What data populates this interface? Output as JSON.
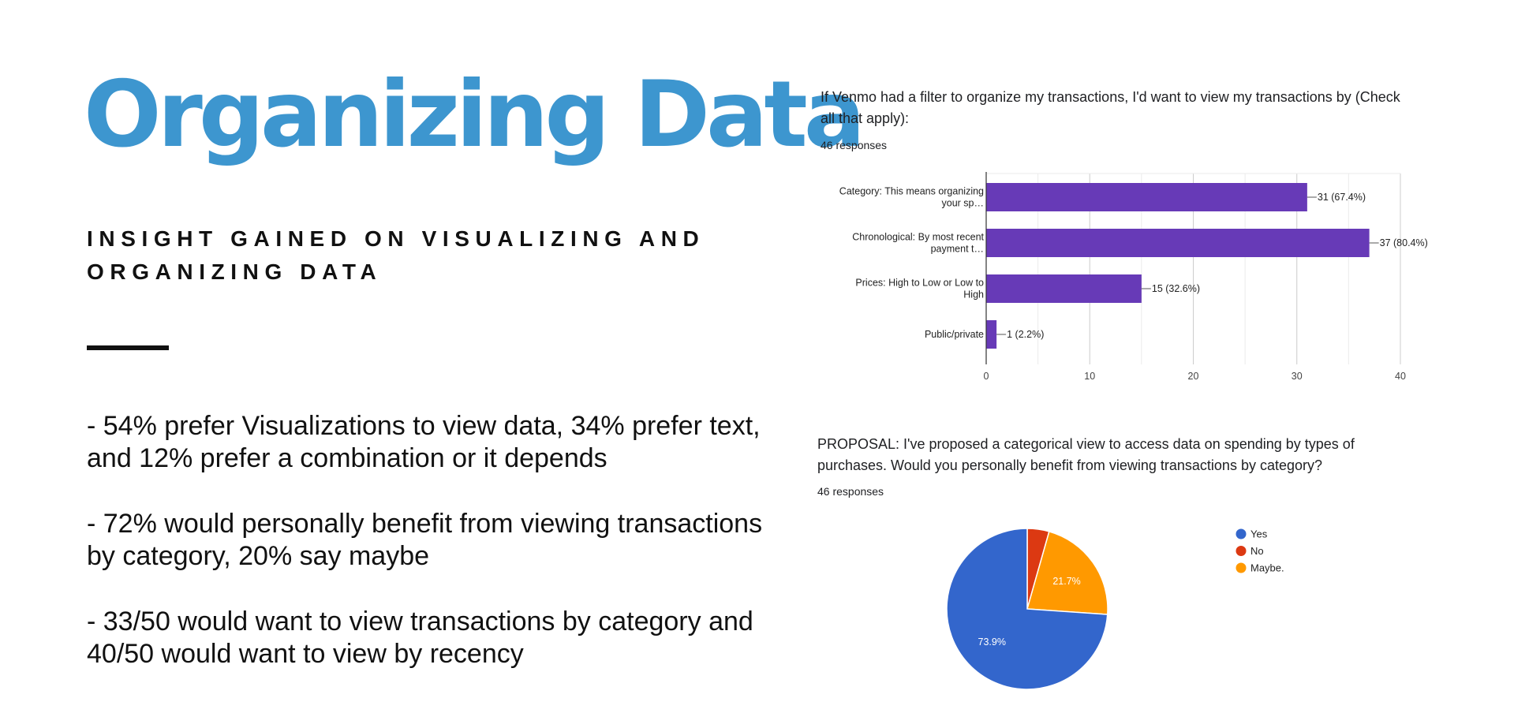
{
  "slide": {
    "title": "Organizing Data",
    "subtitle_lines": [
      "INSIGHT GAINED ON VISUALIZING AND",
      "ORGANIZING DATA"
    ],
    "bullets": [
      [
        "- 54% prefer Visualizations to view data, 34% prefer text,",
        "and 12% prefer a combination or it depends"
      ],
      [
        "- 72% would personally benefit from viewing transactions",
        "by category, 20% say maybe"
      ],
      [
        "- 33/50 would want to view transactions by category and",
        "40/50 would want to view by recency"
      ]
    ]
  },
  "colors": {
    "title": "#3d96cf",
    "bar": "#673ab7",
    "pie_yes": "#3366cc",
    "pie_no": "#dc3912",
    "pie_maybe": "#ff9900"
  },
  "chart_data": [
    {
      "type": "bar",
      "orientation": "horizontal",
      "title_lines": [
        "If Venmo had a filter to organize my transactions, I'd want to view my transactions by (Check",
        "all that apply):"
      ],
      "responses": "46 responses",
      "categories": [
        [
          "Category: This means organizing",
          "your sp…"
        ],
        [
          "Chronological: By most recent",
          "payment t…"
        ],
        [
          "Prices: High to Low or Low to",
          "High"
        ],
        [
          "Public/private"
        ]
      ],
      "values": [
        31,
        37,
        15,
        1
      ],
      "data_labels": [
        "31 (67.4%)",
        "37 (80.4%)",
        "15 (32.6%)",
        "1 (2.2%)"
      ],
      "xlim": [
        0,
        40
      ],
      "xticks": [
        "0",
        "10",
        "20",
        "30",
        "40"
      ],
      "grid": true
    },
    {
      "type": "pie",
      "title_lines": [
        "PROPOSAL: I've proposed a categorical view to access data on spending by types of",
        "purchases. Would you personally benefit from viewing transactions by category?"
      ],
      "responses": "46 responses",
      "slices": [
        {
          "label": "Yes",
          "value": 73.9,
          "display": "73.9%"
        },
        {
          "label": "No",
          "value": 4.4,
          "display": ""
        },
        {
          "label": "Maybe.",
          "value": 21.7,
          "display": "21.7%"
        }
      ],
      "legend_position": "right"
    }
  ]
}
